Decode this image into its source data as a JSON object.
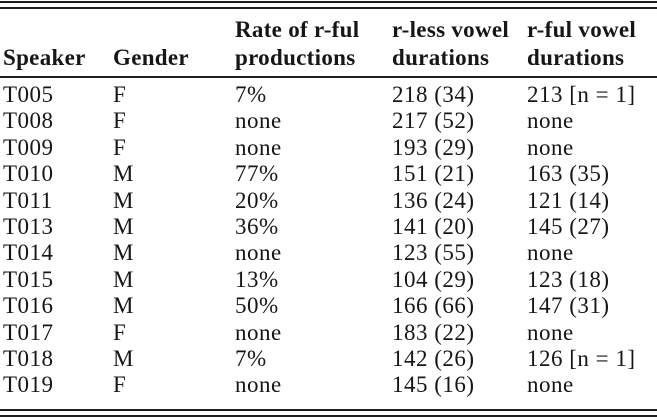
{
  "table": {
    "columns": [
      {
        "key": "speaker",
        "label": "Speaker"
      },
      {
        "key": "gender",
        "label": "Gender"
      },
      {
        "key": "rate",
        "label": "Rate of r-ful productions"
      },
      {
        "key": "rless",
        "label": "r-less vowel durations"
      },
      {
        "key": "rful",
        "label": "r-ful vowel durations"
      }
    ],
    "rows": [
      {
        "speaker": "T005",
        "gender": "F",
        "rate": "7%",
        "rless": "218 (34)",
        "rful": "213 [n = 1]"
      },
      {
        "speaker": "T008",
        "gender": "F",
        "rate": "none",
        "rless": "217 (52)",
        "rful": "none"
      },
      {
        "speaker": "T009",
        "gender": "F",
        "rate": "none",
        "rless": "193 (29)",
        "rful": "none"
      },
      {
        "speaker": "T010",
        "gender": "M",
        "rate": "77%",
        "rless": "151 (21)",
        "rful": "163 (35)"
      },
      {
        "speaker": "T011",
        "gender": "M",
        "rate": "20%",
        "rless": "136 (24)",
        "rful": "121 (14)"
      },
      {
        "speaker": "T013",
        "gender": "M",
        "rate": "36%",
        "rless": "141 (20)",
        "rful": "145 (27)"
      },
      {
        "speaker": "T014",
        "gender": "M",
        "rate": "none",
        "rless": "123 (55)",
        "rful": "none"
      },
      {
        "speaker": "T015",
        "gender": "M",
        "rate": "13%",
        "rless": "104 (29)",
        "rful": "123 (18)"
      },
      {
        "speaker": "T016",
        "gender": "M",
        "rate": "50%",
        "rless": "166 (66)",
        "rful": "147 (31)"
      },
      {
        "speaker": "T017",
        "gender": "F",
        "rate": "none",
        "rless": "183 (22)",
        "rful": "none"
      },
      {
        "speaker": "T018",
        "gender": "M",
        "rate": "7%",
        "rless": "142 (26)",
        "rful": "126 [n = 1]"
      },
      {
        "speaker": "T019",
        "gender": "F",
        "rate": "none",
        "rless": "145 (16)",
        "rful": "none"
      }
    ]
  },
  "colors": {
    "text": "#161616",
    "background": "#ffffff",
    "rule": "#1f1f1f"
  }
}
